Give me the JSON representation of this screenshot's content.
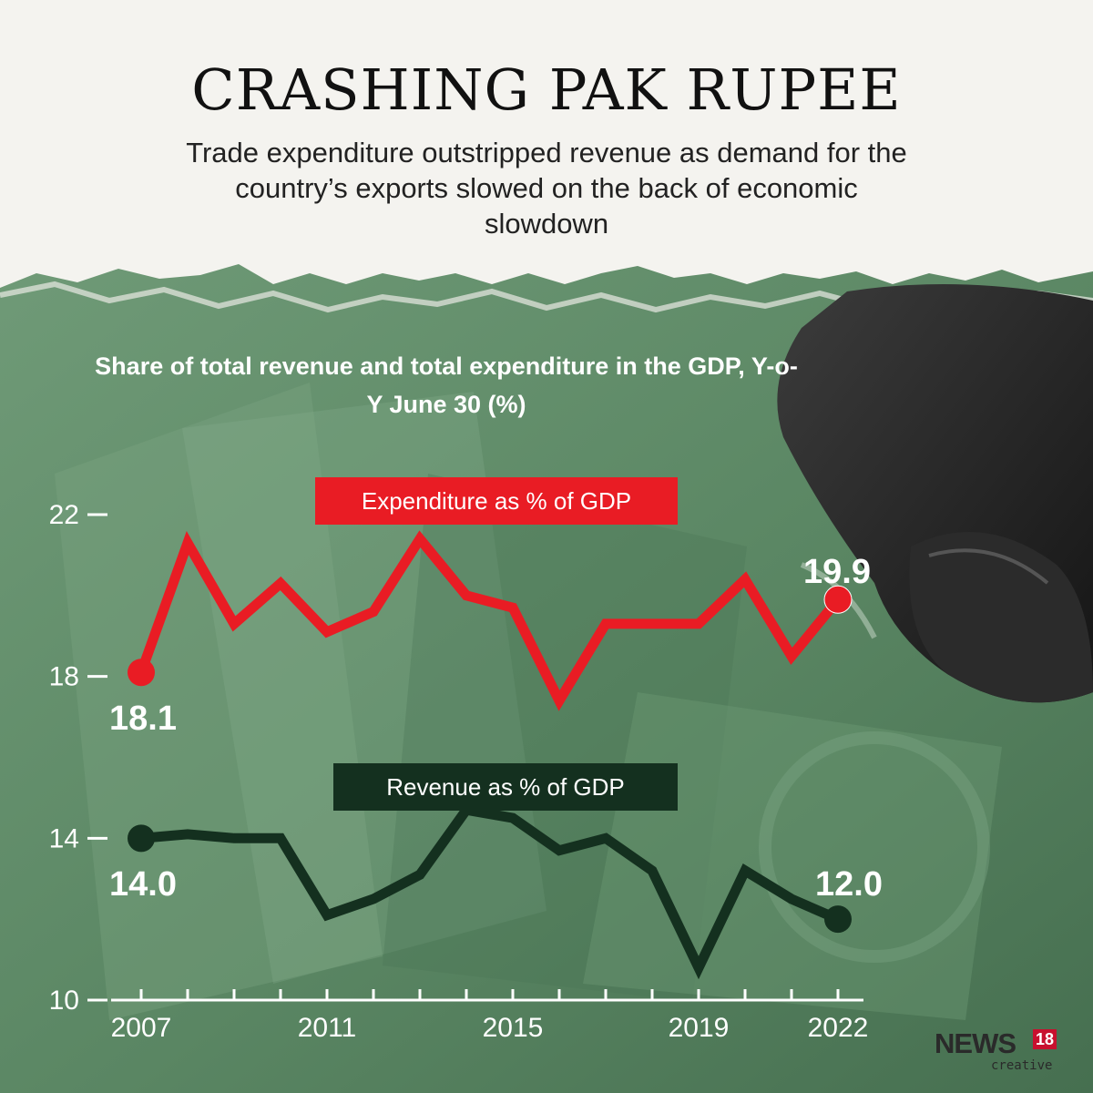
{
  "header": {
    "title": "CRASHING PAK RUPEE",
    "subtitle": "Trade expenditure outstripped revenue as demand for the country’s exports slowed on the back of economic slowdown"
  },
  "logo": {
    "main": "NEWS",
    "badge": "18",
    "sub": "creative"
  },
  "colors": {
    "expenditure": "#e91c24",
    "revenue": "#14301f",
    "background": "#5f8a68",
    "paper": "#f4f3ef"
  },
  "chart_data": {
    "type": "line",
    "title": "Share of total revenue and total expenditure in the GDP, Y-o-Y June 30 (%)",
    "x": [
      2007,
      2008,
      2009,
      2010,
      2011,
      2012,
      2013,
      2014,
      2015,
      2016,
      2017,
      2018,
      2019,
      2020,
      2021,
      2022
    ],
    "x_tick_labels": [
      "2007",
      "2011",
      "2015",
      "2019",
      "2022"
    ],
    "y_ticks": [
      10,
      14,
      18,
      22
    ],
    "ylim": [
      10,
      22
    ],
    "grid": false,
    "legend": "inline labels",
    "series": [
      {
        "name": "Expenditure as % of GDP",
        "values": [
          18.1,
          21.3,
          19.3,
          20.3,
          19.1,
          19.6,
          21.4,
          20.0,
          19.7,
          17.4,
          19.3,
          19.3,
          19.3,
          20.4,
          18.5,
          19.9
        ],
        "start_label": "18.1",
        "end_label": "19.9"
      },
      {
        "name": "Revenue as % of GDP",
        "values": [
          14.0,
          14.1,
          14.0,
          14.0,
          12.1,
          12.5,
          13.1,
          14.7,
          14.5,
          13.7,
          14.0,
          13.2,
          10.8,
          13.2,
          12.5,
          12.0
        ],
        "start_label": "14.0",
        "end_label": "12.0"
      }
    ]
  }
}
